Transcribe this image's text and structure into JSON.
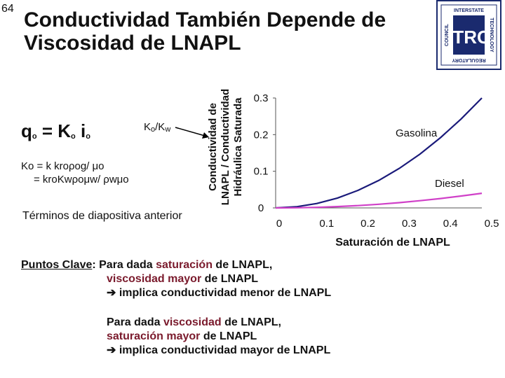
{
  "slide": {
    "number": "64",
    "title_line1": "Conductividad También Depende de",
    "title_line2": "Viscosidad de LNAPL"
  },
  "logo": {
    "center_text": "ITRC",
    "top_arc": "INTERSTATE",
    "left_arc": "COUNCIL",
    "right_arc": "TECHNOLOGY",
    "bottom_arc": "REGULATORY"
  },
  "equations": {
    "main_q": "q",
    "main_q_sub": "o",
    "main_eq": " = K",
    "main_k_sub": "o",
    "main_i": " i",
    "main_i_sub": "o",
    "ratio_k": "K",
    "ratio_sub1": "o",
    "ratio_slash": "/K",
    "ratio_sub2": "w",
    "line1": "Ko = k kroρog/ μo",
    "line2": "= kroKwρoμw/ ρwμo"
  },
  "note": "Términos de diapositiva anterior",
  "key_points": {
    "heading": "Puntos Clave",
    "colon": ":",
    "p1_a": " Para dada ",
    "p1_b": "saturación",
    "p1_c": " de LNAPL,",
    "p2_a": "viscosidad",
    "p2_b": " mayor ",
    "p2_c": "de LNAPL",
    "p3": " implica conductividad menor de LNAPL",
    "p4_a": "Para dada ",
    "p4_b": "viscosidad",
    "p4_c": " de LNAPL,",
    "p5_a": "saturación mayor",
    "p5_b": " de LNAPL",
    "p6": " implica conductividad mayor de LNAPL"
  },
  "colors": {
    "gasolina": "#1a1a7a",
    "diesel": "#d040c8",
    "highlight": "#7a1a2c"
  },
  "chart_data": {
    "type": "line",
    "xlabel": "Saturación de LNAPL",
    "ylabel_line1": "Conductividad de",
    "ylabel_line2": "LNAPL / Conductividad",
    "ylabel_line3": "Hidráulica Saturada",
    "xlim": [
      0,
      0.5
    ],
    "ylim": [
      0,
      0.3
    ],
    "x_ticks": [
      0,
      0.1,
      0.2,
      0.3,
      0.4,
      0.5
    ],
    "x_tick_labels": [
      "0",
      "0.1",
      "0.2",
      "0.3",
      "0.4",
      "0.5"
    ],
    "y_ticks": [
      0,
      0.1,
      0.2,
      0.3
    ],
    "y_tick_labels": [
      "0",
      "0.1",
      "0.2",
      "0.3"
    ],
    "series": [
      {
        "name": "Gasolina",
        "x": [
          0,
          0.05,
          0.1,
          0.15,
          0.2,
          0.25,
          0.3,
          0.35,
          0.4,
          0.45,
          0.5
        ],
        "y": [
          0,
          0.003,
          0.012,
          0.027,
          0.048,
          0.075,
          0.108,
          0.147,
          0.192,
          0.243,
          0.3
        ]
      },
      {
        "name": "Diesel",
        "x": [
          0,
          0.05,
          0.1,
          0.15,
          0.2,
          0.25,
          0.3,
          0.35,
          0.4,
          0.45,
          0.5
        ],
        "y": [
          0,
          0.0004,
          0.0016,
          0.0036,
          0.0064,
          0.01,
          0.0144,
          0.0196,
          0.0256,
          0.0324,
          0.04
        ]
      }
    ]
  }
}
